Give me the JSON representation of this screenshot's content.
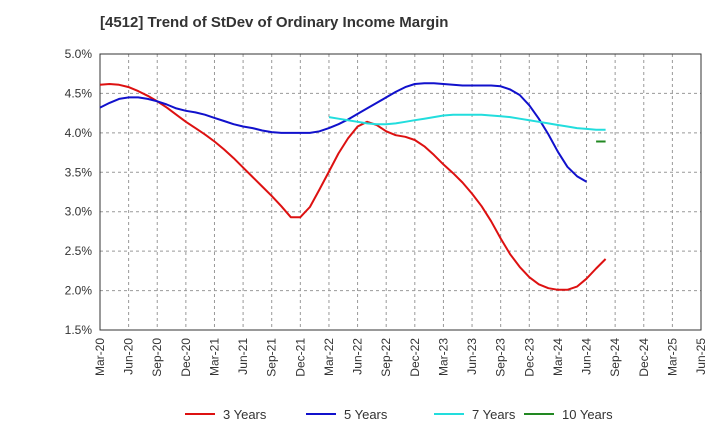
{
  "chart_data": {
    "type": "line",
    "title": "[4512]  Trend of StDev of Ordinary Income Margin",
    "xlabel": "",
    "ylabel": "",
    "x_ticks": [
      "Mar-20",
      "Jun-20",
      "Sep-20",
      "Dec-20",
      "Mar-21",
      "Jun-21",
      "Sep-21",
      "Dec-21",
      "Mar-22",
      "Jun-22",
      "Sep-22",
      "Dec-22",
      "Mar-23",
      "Jun-23",
      "Sep-23",
      "Dec-23",
      "Mar-24",
      "Jun-24",
      "Sep-24",
      "Dec-24",
      "Mar-25",
      "Jun-25"
    ],
    "y_ticks": [
      "1.5%",
      "2.0%",
      "2.5%",
      "3.0%",
      "3.5%",
      "4.0%",
      "4.5%",
      "5.0%"
    ],
    "ylim": [
      1.5,
      5.0
    ],
    "grid": true,
    "legend_position": "bottom",
    "series": [
      {
        "name": "3 Years",
        "color": "#dd1111",
        "start_index": 0,
        "values": [
          4.61,
          4.62,
          4.61,
          4.58,
          4.53,
          4.47,
          4.4,
          4.32,
          4.23,
          4.14,
          4.06,
          3.98,
          3.89,
          3.79,
          3.68,
          3.56,
          3.44,
          3.32,
          3.2,
          3.07,
          2.93,
          2.93,
          3.06,
          3.28,
          3.51,
          3.74,
          3.93,
          4.08,
          4.14,
          4.1,
          4.02,
          3.97,
          3.95,
          3.91,
          3.83,
          3.72,
          3.6,
          3.49,
          3.37,
          3.23,
          3.07,
          2.88,
          2.66,
          2.46,
          2.3,
          2.17,
          2.08,
          2.03,
          2.01,
          2.01,
          2.05,
          2.15,
          2.28,
          2.4
        ]
      },
      {
        "name": "5 Years",
        "color": "#1111cc",
        "start_index": 0,
        "values": [
          4.32,
          4.38,
          4.43,
          4.45,
          4.45,
          4.43,
          4.4,
          4.36,
          4.31,
          4.28,
          4.26,
          4.23,
          4.19,
          4.15,
          4.11,
          4.08,
          4.06,
          4.03,
          4.01,
          4.0,
          4.0,
          4.0,
          4.0,
          4.02,
          4.06,
          4.11,
          4.17,
          4.24,
          4.31,
          4.38,
          4.45,
          4.52,
          4.58,
          4.62,
          4.63,
          4.63,
          4.62,
          4.61,
          4.6,
          4.6,
          4.6,
          4.6,
          4.59,
          4.55,
          4.48,
          4.35,
          4.18,
          3.98,
          3.76,
          3.57,
          3.45,
          3.38
        ]
      },
      {
        "name": "7 Years",
        "color": "#22dddd",
        "start_index": 24,
        "values": [
          4.2,
          4.18,
          4.16,
          4.14,
          4.12,
          4.11,
          4.11,
          4.12,
          4.14,
          4.16,
          4.18,
          4.2,
          4.22,
          4.23,
          4.23,
          4.23,
          4.23,
          4.22,
          4.21,
          4.2,
          4.18,
          4.16,
          4.14,
          4.12,
          4.1,
          4.08,
          4.06,
          4.05,
          4.04,
          4.04
        ]
      },
      {
        "name": "10 Years",
        "color": "#228822",
        "start_index": 52,
        "values": [
          3.89,
          3.89
        ]
      }
    ]
  }
}
